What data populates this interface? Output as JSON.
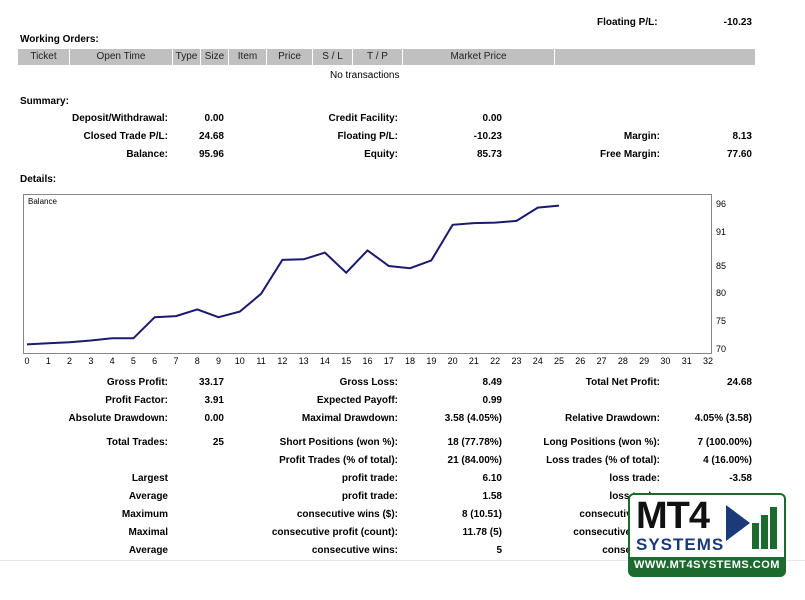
{
  "top": {
    "floating_label": "Floating P/L:",
    "floating_value": "-10.23"
  },
  "working_orders": {
    "title": "Working Orders:",
    "columns": [
      "Ticket",
      "Open Time",
      "Type",
      "Size",
      "Item",
      "Price",
      "S / L",
      "T / P",
      "Market Price",
      ""
    ],
    "empty_text": "No transactions"
  },
  "summary": {
    "title": "Summary:",
    "deposit_label": "Deposit/Withdrawal:",
    "deposit_value": "0.00",
    "credit_label": "Credit Facility:",
    "credit_value": "0.00",
    "closed_label": "Closed Trade P/L:",
    "closed_value": "24.68",
    "floating_label": "Floating P/L:",
    "floating_value": "-10.23",
    "margin_label": "Margin:",
    "margin_value": "8.13",
    "balance_label": "Balance:",
    "balance_value": "95.96",
    "equity_label": "Equity:",
    "equity_value": "85.73",
    "free_margin_label": "Free Margin:",
    "free_margin_value": "77.60"
  },
  "details": {
    "title": "Details:",
    "chart_label": "Balance"
  },
  "chart_data": {
    "type": "line",
    "title": "Balance",
    "x": [
      0,
      1,
      2,
      3,
      4,
      5,
      6,
      7,
      8,
      9,
      10,
      11,
      12,
      13,
      14,
      15,
      16,
      17,
      18,
      19,
      20,
      21,
      22,
      23,
      24,
      25
    ],
    "series": [
      {
        "name": "Balance",
        "color": "#1a1a6e",
        "values": [
          71.0,
          71.2,
          71.4,
          71.7,
          72.1,
          72.1,
          75.9,
          76.1,
          77.3,
          75.9,
          76.9,
          80.1,
          86.2,
          86.3,
          87.5,
          83.9,
          87.9,
          85.1,
          84.7,
          86.1,
          92.5,
          92.8,
          92.9,
          93.2,
          95.6,
          95.96
        ]
      }
    ],
    "xlim": [
      0,
      32
    ],
    "ylim": [
      70,
      97.5
    ],
    "x_ticks": [
      "0",
      "1",
      "2",
      "3",
      "4",
      "5",
      "6",
      "7",
      "8",
      "9",
      "10",
      "11",
      "12",
      "13",
      "14",
      "15",
      "16",
      "17",
      "18",
      "19",
      "20",
      "21",
      "22",
      "23",
      "24",
      "25",
      "26",
      "27",
      "28",
      "29",
      "30",
      "31",
      "32"
    ],
    "y_ticks": [
      "96",
      "91",
      "85",
      "80",
      "75",
      "70"
    ],
    "y_tick_values": [
      96,
      91,
      85,
      80,
      75,
      70
    ],
    "grid": false
  },
  "stats": {
    "gross_profit_label": "Gross Profit:",
    "gross_profit": "33.17",
    "gross_loss_label": "Gross Loss:",
    "gross_loss": "8.49",
    "total_net_label": "Total Net Profit:",
    "total_net": "24.68",
    "profit_factor_label": "Profit Factor:",
    "profit_factor": "3.91",
    "expected_payoff_label": "Expected Payoff:",
    "expected_payoff": "0.99",
    "abs_dd_label": "Absolute Drawdown:",
    "abs_dd": "0.00",
    "max_dd_label": "Maximal Drawdown:",
    "max_dd": "3.58 (4.05%)",
    "rel_dd_label": "Relative Drawdown:",
    "rel_dd": "4.05% (3.58)",
    "total_trades_label": "Total Trades:",
    "total_trades": "25",
    "short_label": "Short Positions (won %):",
    "short": "18 (77.78%)",
    "long_label": "Long Positions (won %):",
    "long": "7 (100.00%)",
    "profit_trades_label": "Profit Trades (% of total):",
    "profit_trades": "21 (84.00%)",
    "loss_trades_label": "Loss trades (% of total):",
    "loss_trades": "4 (16.00%)",
    "largest_label": "Largest",
    "largest_profit_label": "profit trade:",
    "largest_profit": "6.10",
    "largest_loss_label": "loss trade:",
    "largest_loss": "-3.58",
    "average_label": "Average",
    "average_profit_label": "profit trade:",
    "average_profit": "1.58",
    "average_loss_label": "loss trade:",
    "maximum_label": "Maximum",
    "max_wins_label": "consecutive wins ($):",
    "max_wins": "8 (10.51)",
    "max_loss_label": "consecutive loss",
    "maximal_label": "Maximal",
    "maximal_profit_label": "consecutive profit (count):",
    "maximal_profit": "11.78 (5)",
    "maximal_loss_label": "consecutive loss (",
    "average2_label": "Average",
    "avg_wins_label": "consecutive wins:",
    "avg_wins": "5",
    "avg_loss_label": "consecutive"
  },
  "logo": {
    "brand": "MT4",
    "sub": "SYSTEMS",
    "url": "WWW.MT4SYSTEMS.COM",
    "green": "#1d6a2f",
    "blue": "#1a3a7a"
  }
}
